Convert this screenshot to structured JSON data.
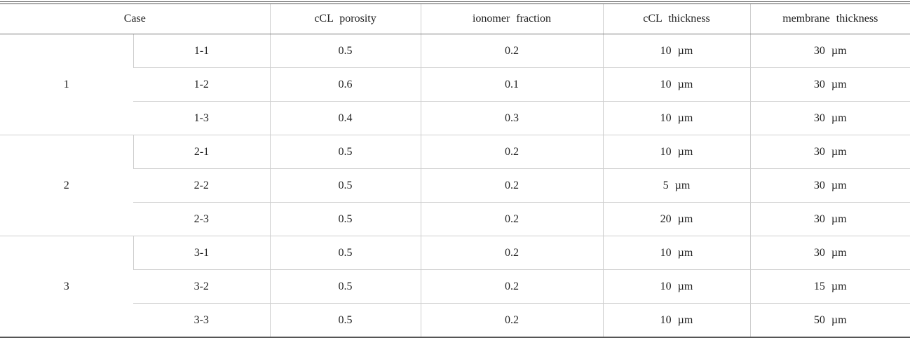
{
  "table": {
    "header": [
      "Case",
      "cCL porosity",
      "ionomer fraction",
      "cCL thickness",
      "membrane thickness"
    ],
    "groups": [
      {
        "label": "1",
        "rows": [
          [
            "1-1",
            "0.5",
            "0.2",
            "10 µm",
            "30 µm"
          ],
          [
            "1-2",
            "0.6",
            "0.1",
            "10 µm",
            "30 µm"
          ],
          [
            "1-3",
            "0.4",
            "0.3",
            "10 µm",
            "30 µm"
          ]
        ]
      },
      {
        "label": "2",
        "rows": [
          [
            "2-1",
            "0.5",
            "0.2",
            "10 µm",
            "30 µm"
          ],
          [
            "2-2",
            "0.5",
            "0.2",
            "5 µm",
            "30 µm"
          ],
          [
            "2-3",
            "0.5",
            "0.2",
            "20 µm",
            "30 µm"
          ]
        ]
      },
      {
        "label": "3",
        "rows": [
          [
            "3-1",
            "0.5",
            "0.2",
            "10 µm",
            "30 µm"
          ],
          [
            "3-2",
            "0.5",
            "0.2",
            "10 µm",
            "15 µm"
          ],
          [
            "3-3",
            "0.5",
            "0.2",
            "10 µm",
            "50 µm"
          ]
        ]
      }
    ]
  }
}
